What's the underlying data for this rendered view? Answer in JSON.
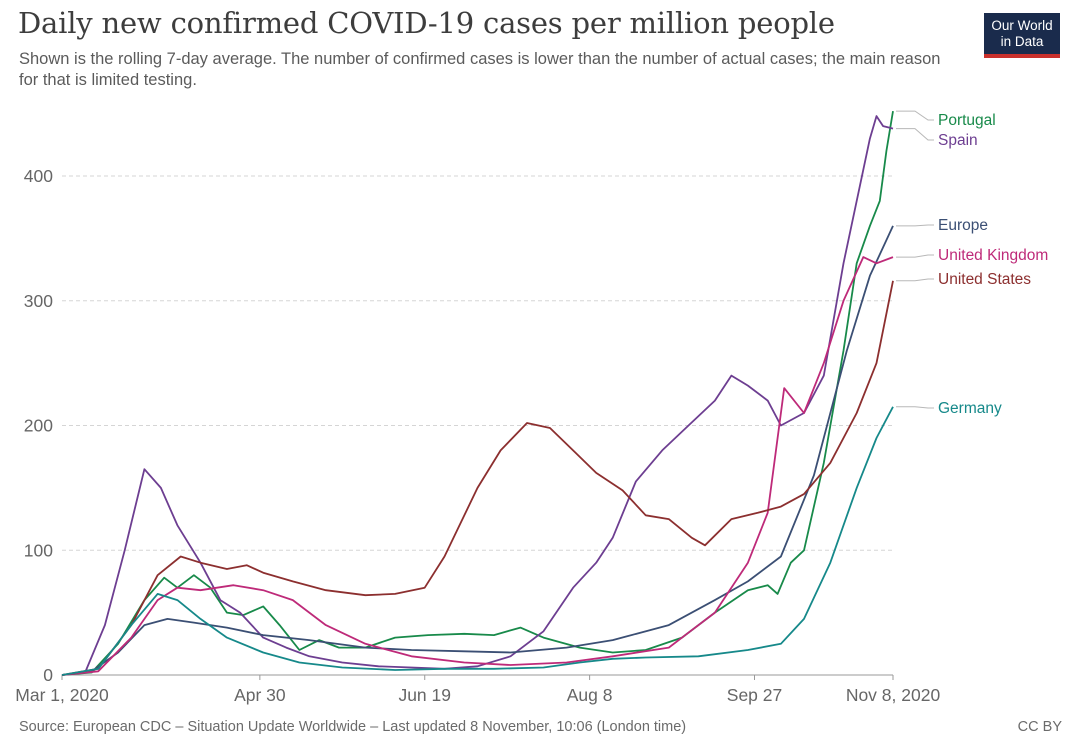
{
  "header": {
    "title": "Daily new confirmed COVID-19 cases per million people",
    "subtitle": "Shown is the rolling 7-day average. The number of confirmed cases is lower than the number of actual cases; the main reason for that is limited testing.",
    "logo_line1": "Our World",
    "logo_line2": "in Data"
  },
  "footer": {
    "source": "Source: European CDC – Situation Update Worldwide – Last updated 8 November, 10:06 (London time)",
    "license": "CC BY"
  },
  "colors": {
    "portugal": "#188a4a",
    "spain": "#6d3e91",
    "europe": "#3b4f74",
    "united_kingdom": "#be2a79",
    "united_states": "#8c2f2f",
    "germany": "#16898a",
    "grid": "#d5d5d5",
    "axis": "#666666"
  },
  "chart_data": {
    "type": "line",
    "title": "Daily new confirmed COVID-19 cases per million people",
    "xlabel": "",
    "ylabel": "",
    "x_axis": {
      "type": "date",
      "start": "2020-03-01",
      "end": "2020-11-08",
      "tick_dates": [
        "2020-03-01",
        "2020-04-30",
        "2020-06-19",
        "2020-08-08",
        "2020-09-27",
        "2020-11-08"
      ],
      "tick_labels": [
        "Mar 1, 2020",
        "Apr 30",
        "Jun 19",
        "Aug 8",
        "Sep 27",
        "Nov 8, 2020"
      ]
    },
    "y_axis": {
      "min": 0,
      "max": 450,
      "ticks": [
        0,
        100,
        200,
        300,
        400
      ],
      "grid": true
    },
    "legend_placement": "right, labels at line ends",
    "series": [
      {
        "name": "Portugal",
        "color_key": "portugal",
        "points": [
          [
            "2020-03-01",
            0
          ],
          [
            "2020-03-10",
            2
          ],
          [
            "2020-03-18",
            25
          ],
          [
            "2020-03-26",
            60
          ],
          [
            "2020-04-01",
            78
          ],
          [
            "2020-04-05",
            70
          ],
          [
            "2020-04-10",
            80
          ],
          [
            "2020-04-15",
            70
          ],
          [
            "2020-04-20",
            50
          ],
          [
            "2020-04-25",
            48
          ],
          [
            "2020-05-01",
            55
          ],
          [
            "2020-05-06",
            40
          ],
          [
            "2020-05-12",
            20
          ],
          [
            "2020-05-18",
            28
          ],
          [
            "2020-05-24",
            22
          ],
          [
            "2020-06-01",
            22
          ],
          [
            "2020-06-10",
            30
          ],
          [
            "2020-06-20",
            32
          ],
          [
            "2020-07-01",
            33
          ],
          [
            "2020-07-10",
            32
          ],
          [
            "2020-07-18",
            38
          ],
          [
            "2020-07-25",
            30
          ],
          [
            "2020-08-05",
            22
          ],
          [
            "2020-08-15",
            18
          ],
          [
            "2020-08-25",
            20
          ],
          [
            "2020-09-05",
            30
          ],
          [
            "2020-09-15",
            50
          ],
          [
            "2020-09-25",
            68
          ],
          [
            "2020-10-01",
            72
          ],
          [
            "2020-10-04",
            65
          ],
          [
            "2020-10-08",
            90
          ],
          [
            "2020-10-12",
            100
          ],
          [
            "2020-10-18",
            170
          ],
          [
            "2020-10-24",
            260
          ],
          [
            "2020-10-28",
            330
          ],
          [
            "2020-11-01",
            360
          ],
          [
            "2020-11-04",
            380
          ],
          [
            "2020-11-06",
            420
          ],
          [
            "2020-11-08",
            452
          ]
        ]
      },
      {
        "name": "Spain",
        "color_key": "spain",
        "points": [
          [
            "2020-03-01",
            0
          ],
          [
            "2020-03-08",
            2
          ],
          [
            "2020-03-14",
            40
          ],
          [
            "2020-03-20",
            100
          ],
          [
            "2020-03-26",
            165
          ],
          [
            "2020-03-31",
            150
          ],
          [
            "2020-04-05",
            120
          ],
          [
            "2020-04-12",
            90
          ],
          [
            "2020-04-18",
            60
          ],
          [
            "2020-04-24",
            50
          ],
          [
            "2020-05-01",
            30
          ],
          [
            "2020-05-08",
            22
          ],
          [
            "2020-05-15",
            15
          ],
          [
            "2020-05-25",
            10
          ],
          [
            "2020-06-05",
            7
          ],
          [
            "2020-06-15",
            6
          ],
          [
            "2020-06-25",
            5
          ],
          [
            "2020-07-05",
            7
          ],
          [
            "2020-07-15",
            15
          ],
          [
            "2020-07-25",
            35
          ],
          [
            "2020-08-03",
            70
          ],
          [
            "2020-08-10",
            90
          ],
          [
            "2020-08-15",
            110
          ],
          [
            "2020-08-22",
            155
          ],
          [
            "2020-08-30",
            180
          ],
          [
            "2020-09-07",
            200
          ],
          [
            "2020-09-15",
            220
          ],
          [
            "2020-09-20",
            240
          ],
          [
            "2020-09-25",
            232
          ],
          [
            "2020-10-01",
            220
          ],
          [
            "2020-10-05",
            200
          ],
          [
            "2020-10-12",
            210
          ],
          [
            "2020-10-18",
            240
          ],
          [
            "2020-10-24",
            330
          ],
          [
            "2020-10-28",
            380
          ],
          [
            "2020-11-01",
            430
          ],
          [
            "2020-11-03",
            448
          ],
          [
            "2020-11-05",
            440
          ],
          [
            "2020-11-08",
            438
          ]
        ]
      },
      {
        "name": "Europe",
        "color_key": "europe",
        "points": [
          [
            "2020-03-01",
            0
          ],
          [
            "2020-03-10",
            3
          ],
          [
            "2020-03-18",
            18
          ],
          [
            "2020-03-26",
            40
          ],
          [
            "2020-04-02",
            45
          ],
          [
            "2020-04-10",
            42
          ],
          [
            "2020-04-20",
            38
          ],
          [
            "2020-05-01",
            32
          ],
          [
            "2020-05-15",
            28
          ],
          [
            "2020-06-01",
            22
          ],
          [
            "2020-06-15",
            20
          ],
          [
            "2020-07-01",
            19
          ],
          [
            "2020-07-15",
            18
          ],
          [
            "2020-08-01",
            22
          ],
          [
            "2020-08-15",
            28
          ],
          [
            "2020-09-01",
            40
          ],
          [
            "2020-09-15",
            60
          ],
          [
            "2020-09-25",
            75
          ],
          [
            "2020-10-05",
            95
          ],
          [
            "2020-10-15",
            160
          ],
          [
            "2020-10-25",
            260
          ],
          [
            "2020-11-01",
            320
          ],
          [
            "2020-11-08",
            360
          ]
        ]
      },
      {
        "name": "United Kingdom",
        "color_key": "united_kingdom",
        "points": [
          [
            "2020-03-01",
            0
          ],
          [
            "2020-03-12",
            3
          ],
          [
            "2020-03-22",
            30
          ],
          [
            "2020-03-30",
            60
          ],
          [
            "2020-04-05",
            70
          ],
          [
            "2020-04-12",
            68
          ],
          [
            "2020-04-22",
            72
          ],
          [
            "2020-05-01",
            68
          ],
          [
            "2020-05-10",
            60
          ],
          [
            "2020-05-20",
            40
          ],
          [
            "2020-06-01",
            25
          ],
          [
            "2020-06-15",
            15
          ],
          [
            "2020-07-01",
            10
          ],
          [
            "2020-07-15",
            8
          ],
          [
            "2020-08-01",
            10
          ],
          [
            "2020-08-15",
            15
          ],
          [
            "2020-09-01",
            22
          ],
          [
            "2020-09-15",
            50
          ],
          [
            "2020-09-25",
            90
          ],
          [
            "2020-10-01",
            130
          ],
          [
            "2020-10-06",
            230
          ],
          [
            "2020-10-12",
            210
          ],
          [
            "2020-10-18",
            250
          ],
          [
            "2020-10-24",
            300
          ],
          [
            "2020-10-30",
            335
          ],
          [
            "2020-11-03",
            330
          ],
          [
            "2020-11-08",
            335
          ]
        ]
      },
      {
        "name": "United States",
        "color_key": "united_states",
        "points": [
          [
            "2020-03-01",
            0
          ],
          [
            "2020-03-12",
            5
          ],
          [
            "2020-03-22",
            40
          ],
          [
            "2020-03-30",
            80
          ],
          [
            "2020-04-06",
            95
          ],
          [
            "2020-04-12",
            90
          ],
          [
            "2020-04-20",
            85
          ],
          [
            "2020-04-26",
            88
          ],
          [
            "2020-05-01",
            82
          ],
          [
            "2020-05-10",
            75
          ],
          [
            "2020-05-20",
            68
          ],
          [
            "2020-06-01",
            64
          ],
          [
            "2020-06-10",
            65
          ],
          [
            "2020-06-19",
            70
          ],
          [
            "2020-06-25",
            95
          ],
          [
            "2020-07-05",
            150
          ],
          [
            "2020-07-12",
            180
          ],
          [
            "2020-07-20",
            202
          ],
          [
            "2020-07-27",
            198
          ],
          [
            "2020-08-03",
            180
          ],
          [
            "2020-08-10",
            162
          ],
          [
            "2020-08-18",
            148
          ],
          [
            "2020-08-25",
            128
          ],
          [
            "2020-09-01",
            125
          ],
          [
            "2020-09-08",
            110
          ],
          [
            "2020-09-12",
            104
          ],
          [
            "2020-09-20",
            125
          ],
          [
            "2020-09-28",
            130
          ],
          [
            "2020-10-05",
            135
          ],
          [
            "2020-10-12",
            145
          ],
          [
            "2020-10-20",
            170
          ],
          [
            "2020-10-28",
            210
          ],
          [
            "2020-11-03",
            250
          ],
          [
            "2020-11-08",
            316
          ]
        ]
      },
      {
        "name": "Germany",
        "color_key": "germany",
        "points": [
          [
            "2020-03-01",
            0
          ],
          [
            "2020-03-12",
            5
          ],
          [
            "2020-03-22",
            40
          ],
          [
            "2020-03-30",
            65
          ],
          [
            "2020-04-05",
            60
          ],
          [
            "2020-04-12",
            45
          ],
          [
            "2020-04-20",
            30
          ],
          [
            "2020-05-01",
            18
          ],
          [
            "2020-05-12",
            10
          ],
          [
            "2020-05-25",
            6
          ],
          [
            "2020-06-10",
            4
          ],
          [
            "2020-06-25",
            5
          ],
          [
            "2020-07-10",
            5
          ],
          [
            "2020-07-25",
            6
          ],
          [
            "2020-08-05",
            10
          ],
          [
            "2020-08-15",
            13
          ],
          [
            "2020-08-25",
            14
          ],
          [
            "2020-09-10",
            15
          ],
          [
            "2020-09-25",
            20
          ],
          [
            "2020-10-05",
            25
          ],
          [
            "2020-10-12",
            45
          ],
          [
            "2020-10-20",
            90
          ],
          [
            "2020-10-28",
            150
          ],
          [
            "2020-11-03",
            190
          ],
          [
            "2020-11-08",
            215
          ]
        ]
      }
    ]
  }
}
